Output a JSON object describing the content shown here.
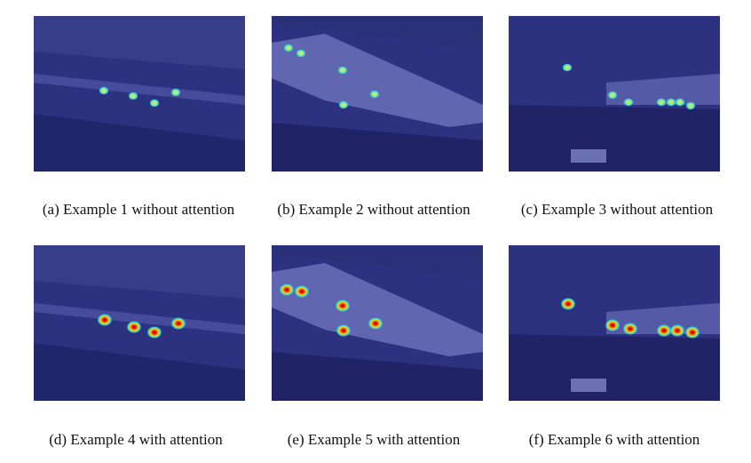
{
  "figures": [
    {
      "caption": "(a) Example 1 without attention"
    },
    {
      "caption": "(b) Example 2 without attention"
    },
    {
      "caption": "(c) Example 3 without attention"
    },
    {
      "caption": "(d) Example 4 with attention"
    },
    {
      "caption": "(e) Example 5 with attention"
    },
    {
      "caption": "(f) Example 6 with attention"
    }
  ]
}
